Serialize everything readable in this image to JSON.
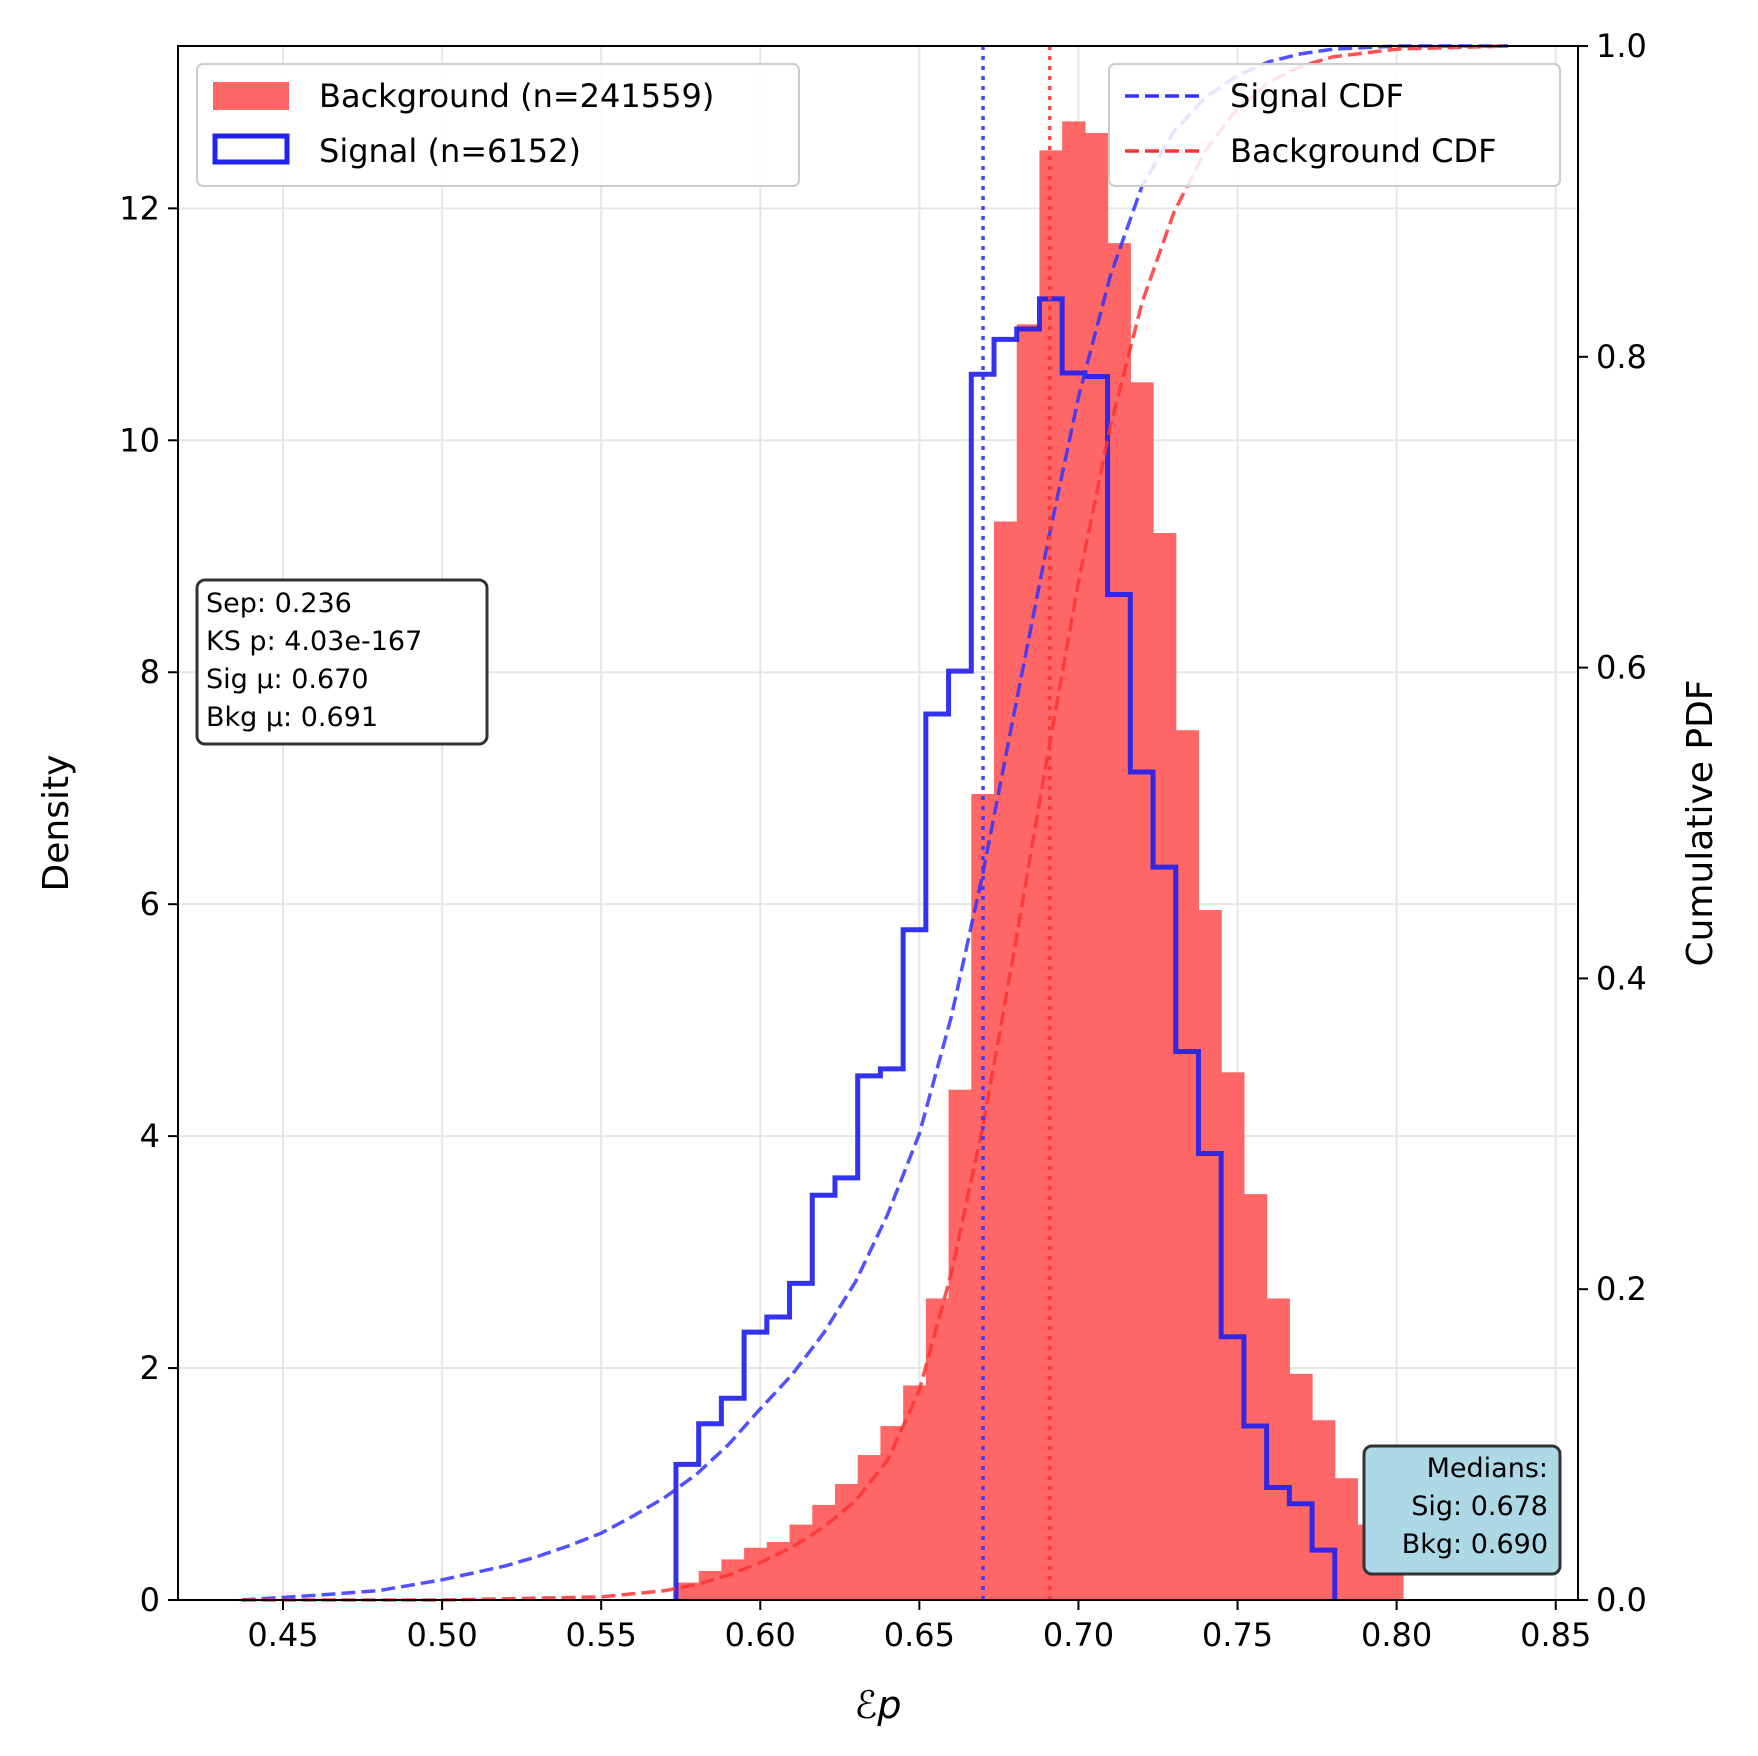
{
  "chart_data": {
    "type": "histogram",
    "xlabel": "ℰp",
    "ylabel_left": "Density",
    "ylabel_right": "Cumulative PDF",
    "xlim": [
      0.417,
      0.857
    ],
    "ylim_left": [
      0,
      13.4
    ],
    "ylim_right": [
      0,
      1.0
    ],
    "grid": true,
    "x_ticks": [
      0.45,
      0.5,
      0.55,
      0.6,
      0.65,
      0.7,
      0.75,
      0.8,
      0.85
    ],
    "x_tick_labels": [
      "0.45",
      "0.50",
      "0.55",
      "0.60",
      "0.65",
      "0.70",
      "0.75",
      "0.80",
      "0.85"
    ],
    "y_ticks_left": [
      0,
      2,
      4,
      6,
      8,
      10,
      12
    ],
    "y_tick_labels_left": [
      "0",
      "2",
      "4",
      "6",
      "8",
      "10",
      "12"
    ],
    "y_ticks_right": [
      0.0,
      0.2,
      0.4,
      0.6,
      0.8,
      1.0
    ],
    "y_tick_labels_right": [
      "0.0",
      "0.2",
      "0.4",
      "0.6",
      "0.8",
      "1.0"
    ],
    "bin_start": 0.5735,
    "bin_width": 0.00714,
    "background": {
      "name": "Background (n=241559)",
      "color": "#ff6666",
      "values": [
        0.15,
        0.25,
        0.35,
        0.45,
        0.5,
        0.65,
        0.82,
        1.0,
        1.25,
        1.5,
        1.85,
        2.6,
        4.4,
        6.95,
        9.3,
        11.0,
        12.5,
        12.75,
        12.65,
        11.7,
        10.5,
        9.2,
        7.5,
        5.95,
        4.55,
        3.5,
        2.6,
        1.95,
        1.55,
        1.05,
        0.65,
        0.45
      ]
    },
    "signal": {
      "name": "Signal (n=6152)",
      "color": "#2222ee",
      "values": [
        1.17,
        1.52,
        1.74,
        2.31,
        2.44,
        2.73,
        3.49,
        3.64,
        4.52,
        4.58,
        5.78,
        7.64,
        8.01,
        10.57,
        10.87,
        10.96,
        11.22,
        10.58,
        10.55,
        8.67,
        7.14,
        6.32,
        4.73,
        3.85,
        2.27,
        1.5,
        0.97,
        0.83,
        0.43
      ],
      "bin_start": 0.5735
    },
    "signal_cdf": {
      "name": "Signal CDF",
      "color": "#3333ff",
      "x": [
        0.437,
        0.46,
        0.48,
        0.5,
        0.52,
        0.53,
        0.54,
        0.55,
        0.56,
        0.57,
        0.58,
        0.59,
        0.6,
        0.61,
        0.62,
        0.63,
        0.64,
        0.65,
        0.66,
        0.67,
        0.68,
        0.69,
        0.7,
        0.71,
        0.72,
        0.73,
        0.74,
        0.75,
        0.76,
        0.77,
        0.78,
        0.8,
        0.835
      ],
      "y": [
        0.0,
        0.003,
        0.006,
        0.013,
        0.022,
        0.028,
        0.035,
        0.043,
        0.054,
        0.066,
        0.081,
        0.1,
        0.123,
        0.145,
        0.172,
        0.205,
        0.248,
        0.3,
        0.375,
        0.468,
        0.573,
        0.677,
        0.774,
        0.852,
        0.91,
        0.945,
        0.967,
        0.981,
        0.99,
        0.995,
        0.998,
        1.0,
        1.0
      ]
    },
    "background_cdf": {
      "name": "Background CDF",
      "color": "#ff3333",
      "x": [
        0.437,
        0.5,
        0.55,
        0.57,
        0.58,
        0.59,
        0.6,
        0.61,
        0.62,
        0.63,
        0.64,
        0.65,
        0.66,
        0.67,
        0.68,
        0.69,
        0.7,
        0.71,
        0.72,
        0.73,
        0.74,
        0.75,
        0.76,
        0.77,
        0.78,
        0.8,
        0.835
      ],
      "y": [
        0.0,
        0.0,
        0.002,
        0.006,
        0.01,
        0.016,
        0.024,
        0.034,
        0.047,
        0.064,
        0.09,
        0.135,
        0.21,
        0.305,
        0.42,
        0.54,
        0.655,
        0.755,
        0.835,
        0.893,
        0.933,
        0.96,
        0.977,
        0.987,
        0.993,
        0.998,
        1.0
      ]
    },
    "vlines": [
      {
        "name": "signal-mean-line",
        "x": 0.67,
        "color": "#3333ff"
      },
      {
        "name": "background-mean-line",
        "x": 0.691,
        "color": "#ff3333"
      }
    ],
    "legend_left": [
      "Background (n=241559)",
      "Signal (n=6152)"
    ],
    "legend_right": [
      "Signal CDF",
      "Background CDF"
    ],
    "stats_box": [
      "Sep: 0.236",
      "KS p: 4.03e-167",
      "Sig μ: 0.670",
      "Bkg μ: 0.691"
    ],
    "medians_box": [
      "Medians:",
      "Sig: 0.678",
      "Bkg: 0.690"
    ]
  }
}
